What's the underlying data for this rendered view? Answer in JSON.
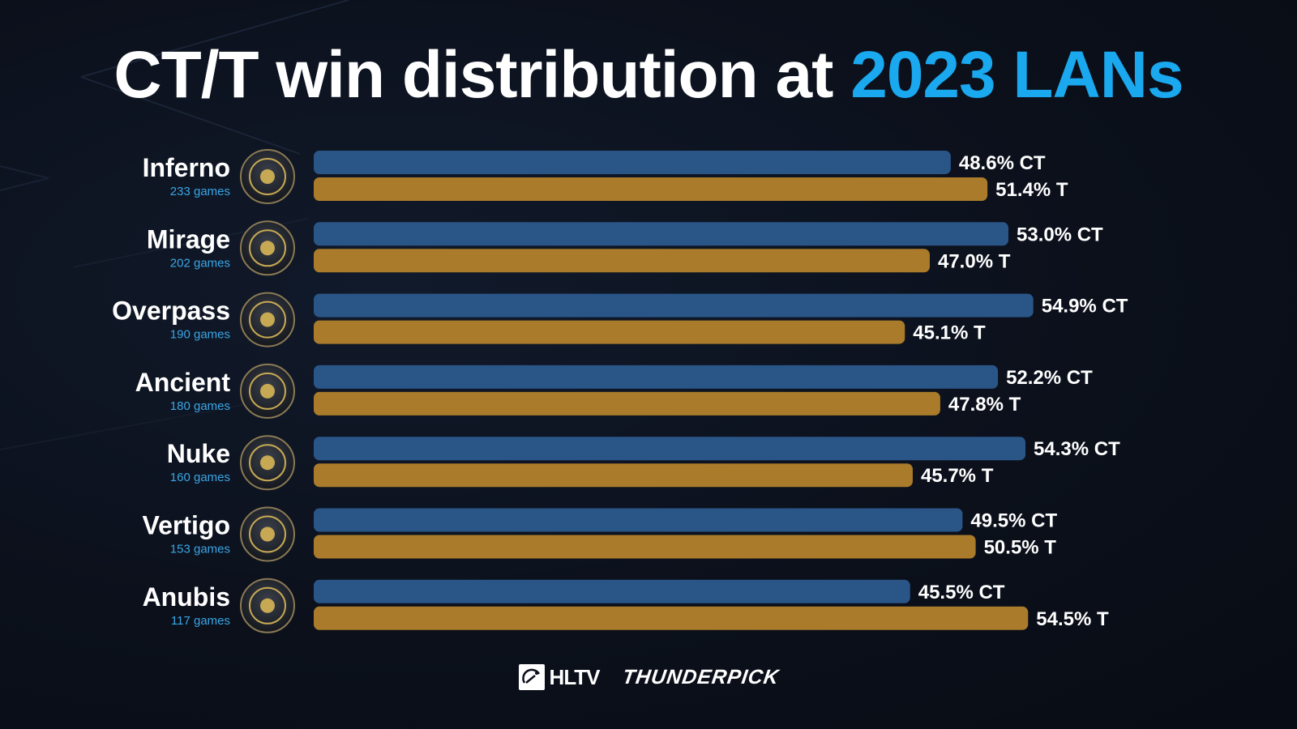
{
  "title": {
    "main": "CT/T win distribution at ",
    "highlight": "2023 LANs"
  },
  "chart_data": {
    "type": "bar",
    "orientation": "horizontal",
    "title": "CT/T win distribution at 2023 LANs",
    "categories": [
      "Inferno",
      "Mirage",
      "Overpass",
      "Ancient",
      "Nuke",
      "Vertigo",
      "Anubis"
    ],
    "games": [
      "233 games",
      "202 games",
      "190 games",
      "180 games",
      "160 games",
      "153 games",
      "117 games"
    ],
    "series": [
      {
        "name": "CT",
        "values": [
          48.6,
          53.0,
          54.9,
          52.2,
          54.3,
          49.5,
          45.5
        ],
        "color": "#2a5587"
      },
      {
        "name": "T",
        "values": [
          51.4,
          47.0,
          45.1,
          47.8,
          45.7,
          50.5,
          54.5
        ],
        "color": "#a97b2a"
      }
    ],
    "labels": {
      "CT": [
        "48.6% CT",
        "53.0% CT",
        "54.9% CT",
        "52.2% CT",
        "54.3% CT",
        "49.5% CT",
        "45.5% CT"
      ],
      "T": [
        "51.4% T",
        "47.0% T",
        "45.1% T",
        "47.8% T",
        "45.7% T",
        "50.5% T",
        "54.5% T"
      ]
    },
    "xlim": [
      0,
      57
    ],
    "grid": false,
    "legend": "none"
  },
  "icons": [
    "inferno-icon",
    "mirage-icon",
    "overpass-icon",
    "ancient-icon",
    "nuke-icon",
    "vertigo-icon",
    "anubis-icon"
  ],
  "footer": {
    "hltv": "HLTV",
    "thunderpick": "THUNDERPICK"
  }
}
